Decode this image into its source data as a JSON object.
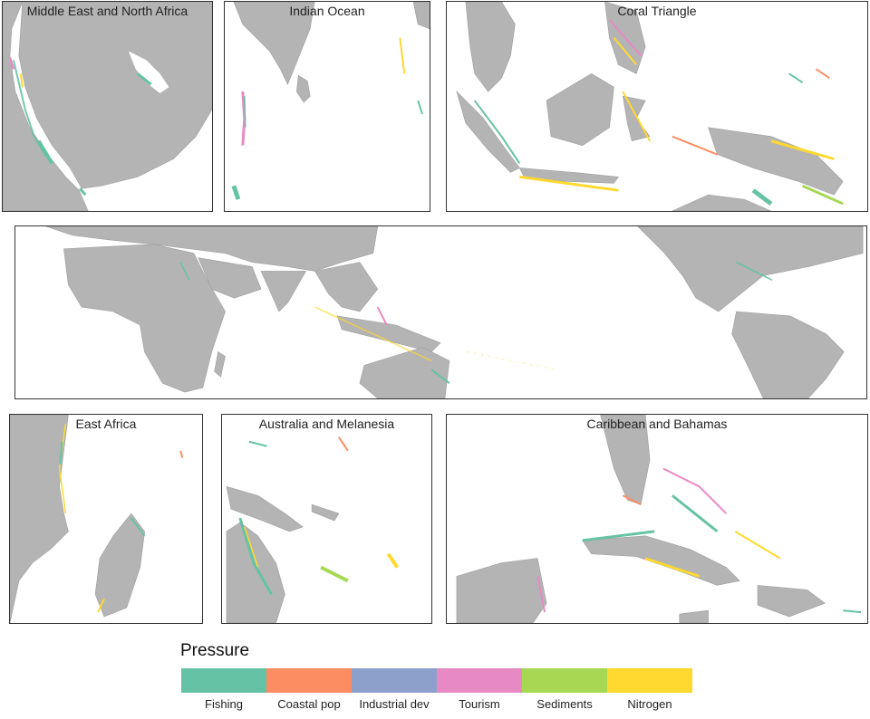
{
  "panels": {
    "mena": {
      "title": "Middle East and North Africa"
    },
    "indian": {
      "title": "Indian Ocean"
    },
    "coral": {
      "title": "Coral Triangle"
    },
    "global": {
      "title": ""
    },
    "eastafrica": {
      "title": "East Africa"
    },
    "australia": {
      "title": "Australia and Melanesia"
    },
    "caribbean": {
      "title": "Caribbean and Bahamas"
    }
  },
  "legend": {
    "title": "Pressure",
    "items": [
      {
        "label": "Fishing",
        "color": "#66c2a5"
      },
      {
        "label": "Coastal pop",
        "color": "#fc8d62"
      },
      {
        "label": "Industrial dev",
        "color": "#8da0cb"
      },
      {
        "label": "Tourism",
        "color": "#e78ac3"
      },
      {
        "label": "Sediments",
        "color": "#a6d854"
      },
      {
        "label": "Nitrogen",
        "color": "#ffd92f"
      }
    ]
  }
}
